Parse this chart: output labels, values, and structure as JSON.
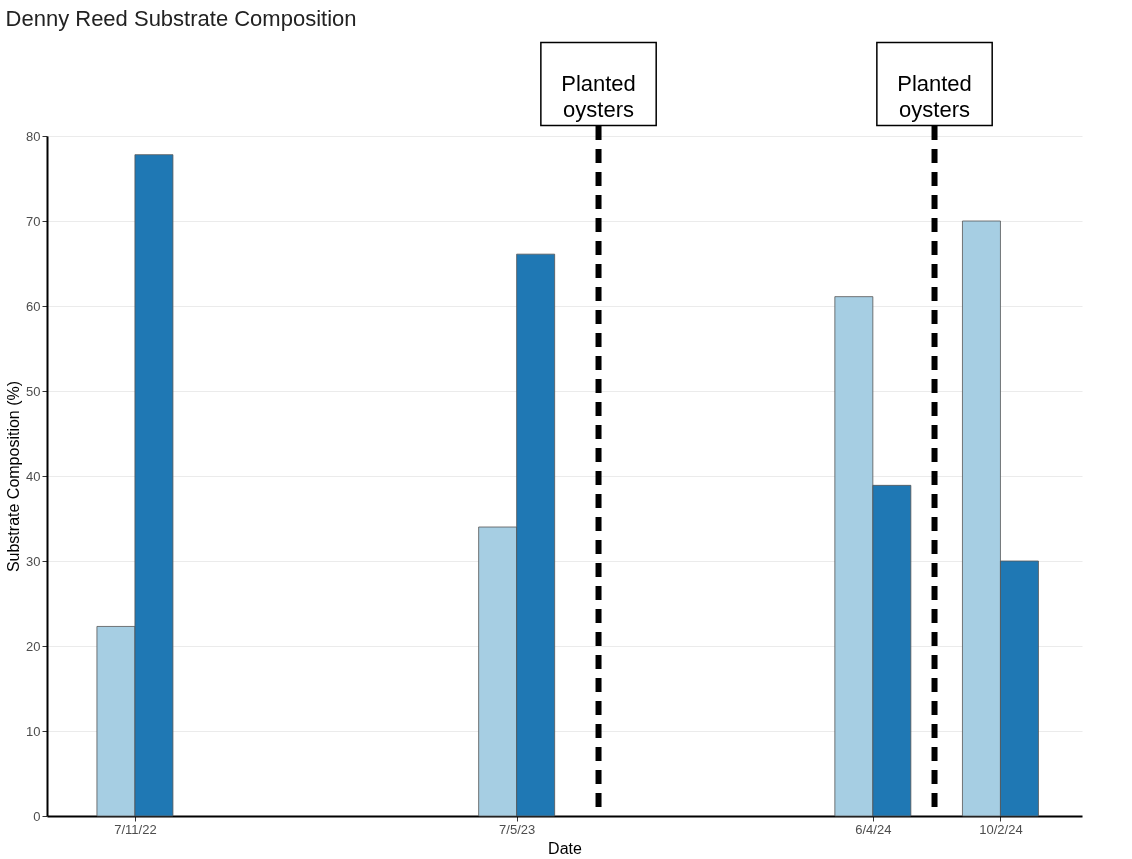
{
  "chart_data": {
    "type": "bar",
    "title": "Denny Reed Substrate Composition",
    "xlabel": "Date",
    "ylabel": "Substrate Composition (%)",
    "x": [
      "2022-07-11",
      "2023-07-05",
      "2024-06-04",
      "2024-10-02"
    ],
    "series": [
      {
        "color": "#a6cee3",
        "values": [
          22.3,
          34,
          61.1,
          70
        ]
      },
      {
        "color": "#1f78b4",
        "values": [
          77.8,
          66.1,
          38.9,
          30
        ]
      }
    ],
    "xlim": [
      "2022-04-24",
      "2024-12-13"
    ],
    "xticks": [
      {
        "value": "2022-07-11",
        "label": "7/11/22"
      },
      {
        "value": "2023-07-05",
        "label": "7/5/23"
      },
      {
        "value": "2024-06-04",
        "label": "6/4/24"
      },
      {
        "value": "2024-10-02",
        "label": "10/2/24"
      }
    ],
    "ylim": [
      0,
      80
    ],
    "yticks": [
      0,
      10,
      20,
      30,
      40,
      50,
      60,
      70,
      80
    ],
    "ref_lines": [
      {
        "axis": "x",
        "value": "2023-09-20",
        "label": "Planted oysters",
        "color": "#000000",
        "line_style": "dashed"
      },
      {
        "axis": "x",
        "value": "2024-08-01",
        "label": "Planted oysters",
        "color": "#000000",
        "line_style": "dashed"
      }
    ],
    "grid": "y"
  }
}
